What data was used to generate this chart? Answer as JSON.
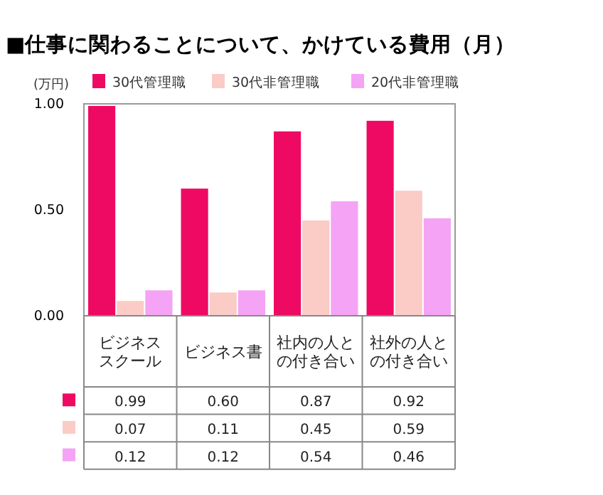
{
  "chart_data": {
    "type": "bar",
    "title": "■仕事に関わることについて、かけている費用（月）",
    "ylabel": "(万円)",
    "categories": [
      "ビジネススクール",
      "ビジネス書",
      "社内の人との付き合い",
      "社外の人との付き合い"
    ],
    "series": [
      {
        "name": "30代管理職",
        "color": "#ee0a62",
        "values": [
          0.99,
          0.6,
          0.87,
          0.92
        ],
        "value_labels": [
          "0.99",
          "0.60",
          "0.87",
          "0.92"
        ]
      },
      {
        "name": "30代非管理職",
        "color": "#fbcbc6",
        "values": [
          0.07,
          0.11,
          0.45,
          0.59
        ],
        "value_labels": [
          "0.07",
          "0.11",
          "0.45",
          "0.59"
        ]
      },
      {
        "name": "20代非管理職",
        "color": "#f5a3f5",
        "values": [
          0.12,
          0.12,
          0.54,
          0.46
        ],
        "value_labels": [
          "0.12",
          "0.12",
          "0.54",
          "0.46"
        ]
      }
    ],
    "ylim": [
      0,
      1
    ],
    "yticks": [
      {
        "value": 0,
        "label": "0.00"
      },
      {
        "value": 0.5,
        "label": "0.50"
      },
      {
        "value": 1,
        "label": "1.00"
      }
    ],
    "grid": false,
    "legend": "top"
  }
}
